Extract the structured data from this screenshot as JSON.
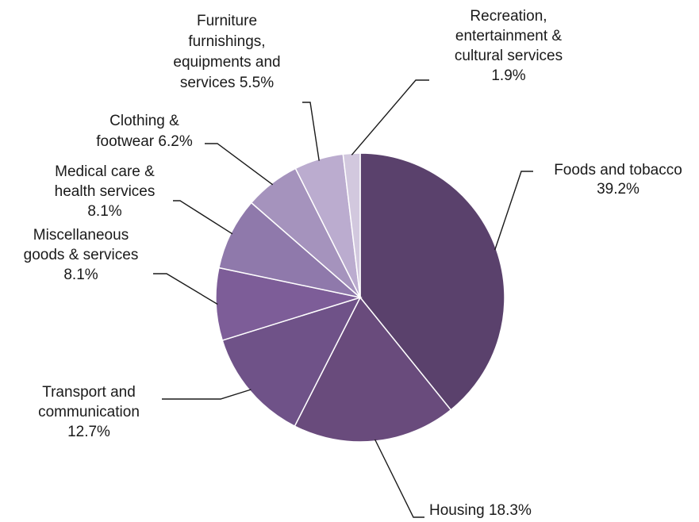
{
  "chart_data": {
    "type": "pie",
    "title": "",
    "start_angle_deg": 0,
    "direction": "clockwise",
    "slices": [
      {
        "name": "Foods and tobacco",
        "value": 39.2,
        "label_lines": [
          "Foods and tobacco",
          "39.2%"
        ],
        "color": "#5a416c"
      },
      {
        "name": "Housing",
        "value": 18.3,
        "label_lines": [
          "Housing 18.3%"
        ],
        "color": "#694b7c"
      },
      {
        "name": "Transport and communication",
        "value": 12.7,
        "label_lines": [
          "Transport and",
          "communication",
          "12.7%"
        ],
        "color": "#6f5288"
      },
      {
        "name": "Miscellaneous goods & services",
        "value": 8.1,
        "label_lines": [
          "Miscellaneous",
          "goods & services",
          "8.1%"
        ],
        "color": "#7d5d98"
      },
      {
        "name": "Medical care & health services",
        "value": 8.1,
        "label_lines": [
          "Medical care &",
          "health services",
          "8.1%"
        ],
        "color": "#8f79ab"
      },
      {
        "name": "Clothing & footwear",
        "value": 6.2,
        "label_lines": [
          "Clothing &",
          "footwear 6.2%"
        ],
        "color": "#a593bd"
      },
      {
        "name": "Furniture furnishings, equipments and services",
        "value": 5.5,
        "label_lines": [
          "Furniture",
          "furnishings,",
          "equipments and",
          "services  5.5%"
        ],
        "color": "#bbaccf"
      },
      {
        "name": "Recreation, entertainment & cultural services",
        "value": 1.9,
        "label_lines": [
          "Recreation,",
          "entertainment &",
          "cultural services",
          "1.9%"
        ],
        "color": "#d2c8de"
      }
    ]
  }
}
